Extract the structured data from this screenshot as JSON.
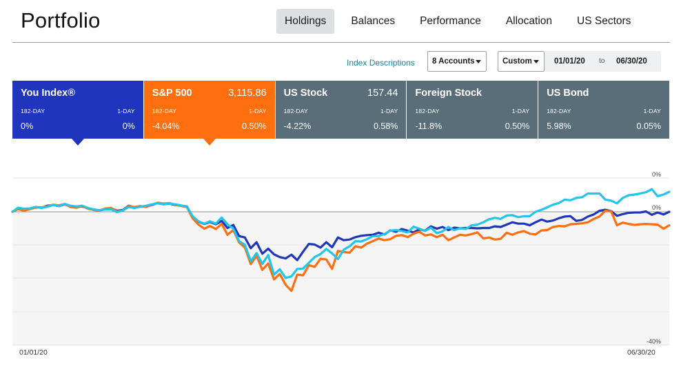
{
  "header": {
    "title": "Portfolio",
    "tabs": [
      {
        "label": "Holdings",
        "active": true
      },
      {
        "label": "Balances",
        "active": false
      },
      {
        "label": "Performance",
        "active": false
      },
      {
        "label": "Allocation",
        "active": false
      },
      {
        "label": "US Sectors",
        "active": false
      }
    ]
  },
  "controls": {
    "index_link": "Index Descriptions",
    "accounts": "8 Accounts",
    "range": "Custom",
    "start_date": "01/01/20",
    "to": "to",
    "end_date": "06/30/20"
  },
  "cards": [
    {
      "name": "You Index®",
      "price": "",
      "lbl_left": "182-DAY",
      "lbl_right": "1-DAY",
      "val_left": "0%",
      "val_right": "0%",
      "color": "#1f35bd",
      "selected": true
    },
    {
      "name": "S&P 500",
      "price": "3,115.86",
      "lbl_left": "182-DAY",
      "lbl_right": "1-DAY",
      "val_left": "-4.04%",
      "val_right": "0.50%",
      "color": "#ff6f0f",
      "selected": true
    },
    {
      "name": "US Stock",
      "price": "157.44",
      "lbl_left": "182-DAY",
      "lbl_right": "1-DAY",
      "val_left": "-4.22%",
      "val_right": "0.58%",
      "color": "#5a6e79",
      "selected": false
    },
    {
      "name": "Foreign Stock",
      "price": "",
      "lbl_left": "182-DAY",
      "lbl_right": "1-DAY",
      "val_left": "-11.8%",
      "val_right": "0.50%",
      "color": "#5a6e79",
      "selected": false
    },
    {
      "name": "US Bond",
      "price": "",
      "lbl_left": "182-DAY",
      "lbl_right": "1-DAY",
      "val_left": "5.98%",
      "val_right": "0.05%",
      "color": "#5a6e79",
      "selected": false
    }
  ],
  "chart_data": {
    "type": "line",
    "x_start_label": "01/01/20",
    "x_end_label": "06/30/20",
    "y_labels": {
      "top": "0%",
      "zero": "0%",
      "bottom": "-40%"
    },
    "ylim": [
      -40,
      8
    ],
    "grid": true,
    "series": [
      {
        "color": "#1f35bd",
        "values": [
          0,
          1.1,
          0.6,
          0.9,
          1.4,
          1.2,
          1.8,
          2.0,
          1.7,
          2.2,
          1.5,
          1.4,
          1.6,
          1.0,
          0.7,
          0.4,
          0.9,
          1.0,
          0.3,
          0.5,
          1.8,
          1.3,
          1.6,
          1.5,
          2.0,
          2.6,
          2.2,
          2.4,
          2.0,
          1.8,
          1.6,
          -1.4,
          -2.9,
          -3.6,
          -3.0,
          -3.7,
          -2.7,
          -4.8,
          -3.9,
          -7.2,
          -7.6,
          -10.8,
          -9.0,
          -12.4,
          -10.9,
          -12.6,
          -13.4,
          -13.8,
          -12.7,
          -14.3,
          -11.8,
          -9.5,
          -9.7,
          -10.6,
          -9.0,
          -10.5,
          -7.6,
          -8.4,
          -8.2,
          -7.5,
          -7.1,
          -6.9,
          -6.8,
          -6.2,
          -6.7,
          -5.5,
          -5.9,
          -5.1,
          -5.6,
          -6.1,
          -5.2,
          -5.6,
          -4.3,
          -5.0,
          -4.5,
          -5.4,
          -4.7,
          -4.9,
          -4.8,
          -4.8,
          -4.9,
          -4.8,
          -4.8,
          -4.3,
          -4.5,
          -3.8,
          -3.1,
          -3.5,
          -3.5,
          -4.0,
          -3.1,
          -2.3,
          -2.9,
          -2.6,
          -1.9,
          -1.4,
          -1.3,
          -2.7,
          -2.4,
          -1.4,
          -0.8,
          0.3,
          0.6,
          0.2,
          -1.2,
          -0.7,
          -0.3,
          -0.2,
          -0.2,
          0.1,
          -0.9,
          -0.2,
          -0.8,
          0
        ]
      },
      {
        "color": "#ff6f0f",
        "values": [
          0,
          0.8,
          0.3,
          0.8,
          1.2,
          1.3,
          1.6,
          2.1,
          1.9,
          2.3,
          1.4,
          1.2,
          1.7,
          0.9,
          0.5,
          0.3,
          1.0,
          1.1,
          0.1,
          0.3,
          1.7,
          1.4,
          1.7,
          1.4,
          2.1,
          2.7,
          2.4,
          2.6,
          2.1,
          1.7,
          1.4,
          -1.9,
          -3.8,
          -5.0,
          -4.2,
          -5.1,
          -3.6,
          -6.8,
          -5.4,
          -9.1,
          -10.6,
          -15.5,
          -13.0,
          -17.2,
          -15.3,
          -20.0,
          -18.4,
          -21.6,
          -23.4,
          -18.6,
          -18.8,
          -15.8,
          -16.3,
          -13.9,
          -14.1,
          -16.9,
          -11.6,
          -11.9,
          -12.1,
          -10.2,
          -10.6,
          -9.4,
          -8.7,
          -7.9,
          -8.4,
          -8.1,
          -7.1,
          -6.9,
          -7.5,
          -6.5,
          -5.9,
          -7.0,
          -6.7,
          -7.5,
          -6.8,
          -8.4,
          -7.6,
          -6.8,
          -7.0,
          -6.6,
          -6.1,
          -7.9,
          -7.6,
          -8.2,
          -8.0,
          -6.2,
          -6.8,
          -6.1,
          -5.7,
          -6.5,
          -6.7,
          -5.5,
          -5.4,
          -4.5,
          -4.2,
          -4.3,
          -3.7,
          -3.6,
          -3.4,
          -3.1,
          -2.1,
          -1.4,
          0.3,
          0.1,
          -4.0,
          -3.2,
          -3.6,
          -3.9,
          -3.7,
          -3.6,
          -3.7,
          -3.8,
          -5.0,
          -4.0
        ]
      },
      {
        "color": "#20c6ec",
        "values": [
          0,
          1.2,
          0.9,
          1.0,
          1.4,
          1.1,
          1.5,
          2.0,
          1.7,
          2.3,
          1.8,
          1.6,
          1.8,
          1.1,
          0.7,
          0.4,
          0.7,
          0.7,
          -0.1,
          0.4,
          1.4,
          1.1,
          1.5,
          1.8,
          2.2,
          2.5,
          2.2,
          2.4,
          2.2,
          1.9,
          1.5,
          -1.3,
          -2.8,
          -3.5,
          -2.8,
          -3.5,
          -1.7,
          -3.7,
          -5.0,
          -8.7,
          -9.8,
          -14.6,
          -12.2,
          -15.4,
          -12.8,
          -18.6,
          -17.0,
          -19.6,
          -19.1,
          -16.9,
          -16.8,
          -15.1,
          -13.4,
          -12.5,
          -11.0,
          -12.3,
          -14.0,
          -11.2,
          -10.2,
          -8.7,
          -8.8,
          -8.1,
          -7.2,
          -7.2,
          -6.6,
          -5.6,
          -5.4,
          -5.7,
          -6.1,
          -4.4,
          -5.0,
          -5.7,
          -4.7,
          -6.3,
          -5.8,
          -4.5,
          -5.4,
          -4.9,
          -5.1,
          -4.0,
          -3.8,
          -3.1,
          -2.2,
          -1.8,
          -2.1,
          -1.1,
          -1.0,
          -1.6,
          -1.3,
          -1.3,
          0.0,
          0.6,
          1.3,
          2.1,
          2.6,
          3.6,
          3.4,
          4.1,
          4.3,
          5.4,
          5.4,
          5.4,
          3.6,
          3.3,
          2.5,
          4.1,
          4.9,
          5.1,
          5.4,
          5.8,
          6.7,
          4.6,
          5.1,
          5.9
        ]
      }
    ]
  }
}
